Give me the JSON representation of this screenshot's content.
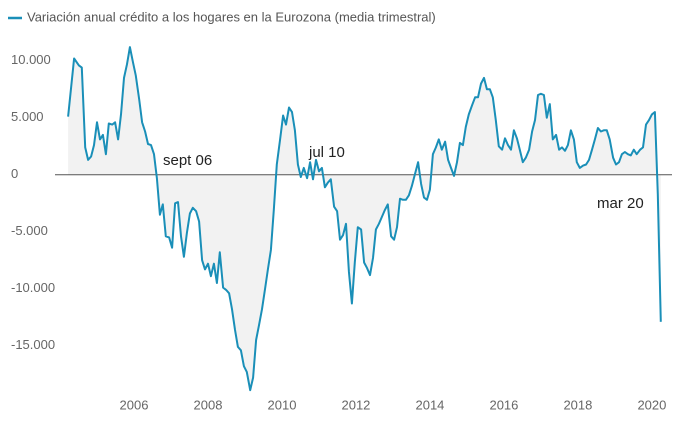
{
  "chart_data": {
    "type": "line",
    "series": [
      {
        "name": "Variación anual crédito a los hogares en la Eurozona (media trimestral)",
        "color": "#1a8fb8",
        "x": [
          2004.22,
          2004.38,
          2004.51,
          2004.59,
          2004.68,
          2004.76,
          2004.84,
          2004.92,
          2005.0,
          2005.08,
          2005.16,
          2005.24,
          2005.32,
          2005.41,
          2005.49,
          2005.57,
          2005.65,
          2005.73,
          2005.81,
          2005.89,
          2005.97,
          2006.05,
          2006.14,
          2006.22,
          2006.3,
          2006.38,
          2006.46,
          2006.54,
          2006.62,
          2006.7,
          2006.78,
          2006.86,
          2006.95,
          2007.03,
          2007.11,
          2007.19,
          2007.27,
          2007.35,
          2007.43,
          2007.51,
          2007.59,
          2007.68,
          2007.76,
          2007.84,
          2007.92,
          2008.0,
          2008.08,
          2008.16,
          2008.24,
          2008.32,
          2008.41,
          2008.49,
          2008.57,
          2008.65,
          2008.73,
          2008.81,
          2008.89,
          2008.97,
          2009.05,
          2009.14,
          2009.22,
          2009.3,
          2009.38,
          2009.46,
          2009.54,
          2009.62,
          2009.7,
          2009.78,
          2009.86,
          2009.95,
          2010.03,
          2010.11,
          2010.19,
          2010.27,
          2010.35,
          2010.43,
          2010.51,
          2010.59,
          2010.68,
          2010.76,
          2010.84,
          2010.92,
          2011.0,
          2011.08,
          2011.16,
          2011.24,
          2011.32,
          2011.41,
          2011.49,
          2011.57,
          2011.65,
          2011.73,
          2011.81,
          2011.89,
          2011.97,
          2012.05,
          2012.14,
          2012.22,
          2012.3,
          2012.38,
          2012.46,
          2012.54,
          2012.62,
          2012.7,
          2012.78,
          2012.86,
          2012.95,
          2013.03,
          2013.11,
          2013.19,
          2013.27,
          2013.35,
          2013.43,
          2013.51,
          2013.59,
          2013.68,
          2013.76,
          2013.84,
          2013.92,
          2014.0,
          2014.08,
          2014.16,
          2014.24,
          2014.32,
          2014.41,
          2014.49,
          2014.57,
          2014.65,
          2014.73,
          2014.81,
          2014.89,
          2014.97,
          2015.05,
          2015.14,
          2015.22,
          2015.3,
          2015.38,
          2015.46,
          2015.54,
          2015.62,
          2015.7,
          2015.78,
          2015.86,
          2015.95,
          2016.03,
          2016.11,
          2016.19,
          2016.27,
          2016.35,
          2016.43,
          2016.51,
          2016.59,
          2016.68,
          2016.76,
          2016.84,
          2016.92,
          2017.0,
          2017.08,
          2017.16,
          2017.24,
          2017.32,
          2017.41,
          2017.49,
          2017.57,
          2017.65,
          2017.73,
          2017.81,
          2017.89,
          2017.97,
          2018.05,
          2018.14,
          2018.22,
          2018.3,
          2018.38,
          2018.46,
          2018.54,
          2018.62,
          2018.7,
          2018.78,
          2018.86,
          2018.95,
          2019.03,
          2019.11,
          2019.19,
          2019.27,
          2019.35,
          2019.43,
          2019.51,
          2019.59,
          2019.68,
          2019.76,
          2019.84,
          2019.92,
          2020.0,
          2020.08,
          2020.16,
          2020.24
        ],
        "values": [
          5100,
          10200,
          9600,
          9400,
          2400,
          1300,
          1600,
          2600,
          4600,
          3100,
          3500,
          1800,
          4500,
          4400,
          4600,
          3100,
          5300,
          8500,
          9700,
          11200,
          9900,
          8700,
          6600,
          4600,
          3800,
          2700,
          2600,
          1800,
          -300,
          -3500,
          -2600,
          -5400,
          -5500,
          -6400,
          -2500,
          -2400,
          -5400,
          -7200,
          -5100,
          -3400,
          -2900,
          -3200,
          -4100,
          -7500,
          -8300,
          -7800,
          -8900,
          -7800,
          -9500,
          -6800,
          -9900,
          -10100,
          -10400,
          -11800,
          -13600,
          -15100,
          -15400,
          -16800,
          -17300,
          -18900,
          -17800,
          -14500,
          -13200,
          -11800,
          -10100,
          -8300,
          -6600,
          -3100,
          900,
          3100,
          5200,
          4400,
          5900,
          5500,
          3900,
          900,
          -200,
          600,
          -300,
          1100,
          -400,
          1300,
          300,
          600,
          -1100,
          -700,
          -400,
          -2800,
          -3200,
          -5700,
          -5300,
          -4300,
          -8500,
          -11300,
          -7700,
          -4600,
          -4800,
          -7700,
          -8200,
          -8800,
          -7300,
          -4800,
          -4300,
          -3700,
          -3100,
          -2600,
          -5400,
          -5700,
          -4600,
          -2100,
          -2200,
          -2200,
          -1800,
          -1000,
          0,
          1100,
          -800,
          -2000,
          -2200,
          -1300,
          1800,
          2400,
          3100,
          2200,
          2900,
          1300,
          600,
          -100,
          1100,
          2800,
          2600,
          4200,
          5300,
          6100,
          6800,
          6800,
          8000,
          8500,
          7500,
          7500,
          6800,
          4800,
          2500,
          2200,
          3200,
          2600,
          2200,
          3900,
          3200,
          2200,
          1100,
          1500,
          2200,
          3800,
          4800,
          7000,
          7100,
          7000,
          5000,
          6200,
          3100,
          3500,
          2200,
          2400,
          2100,
          2600,
          3900,
          3100,
          1100,
          600,
          800,
          900,
          1300,
          2200,
          3100,
          4100,
          3800,
          3900,
          3900,
          3100,
          1500,
          900,
          1100,
          1800,
          2000,
          1800,
          1700,
          2200,
          1800,
          2200,
          2400,
          4400,
          4800,
          5300,
          5500,
          -1700,
          -12900
        ]
      }
    ],
    "annotations": [
      "sept 06",
      "jul 10",
      "mar 20"
    ],
    "xlim": [
      2004,
      2020.57
    ],
    "xticks": [
      2006,
      2008,
      2010,
      2012,
      2014,
      2016,
      2018,
      2020
    ],
    "ylim": [
      -19500,
      12000
    ],
    "yticks": [
      {
        "value": 10000,
        "label": "10.000"
      },
      {
        "value": 5000,
        "label": "5.000"
      },
      0,
      {
        "value": -5000,
        "label": "-5.000"
      },
      {
        "value": -10000,
        "label": "-10.000"
      },
      {
        "value": -15000,
        "label": "-15.000"
      }
    ],
    "fill_color": "#f2f2f2",
    "zero_line_color": "#555555"
  }
}
